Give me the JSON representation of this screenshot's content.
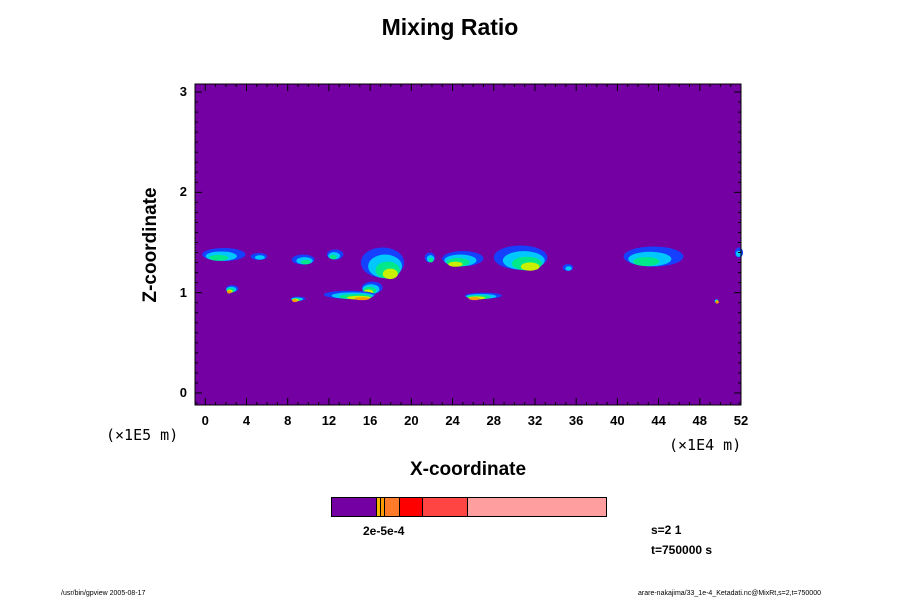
{
  "chart_data": {
    "type": "heatmap",
    "title": "Mixing Ratio",
    "xlabel": "X-coordinate",
    "ylabel": "Z-coordinate",
    "x_unit": "(×1E4 m)",
    "z_unit": "(×1E5 m)",
    "xlim": [
      -1,
      52
    ],
    "zlim": [
      -0.12,
      3.08
    ],
    "x_ticks": [
      0,
      4,
      8,
      12,
      16,
      20,
      24,
      28,
      32,
      36,
      40,
      44,
      48,
      52
    ],
    "z_ticks": [
      0,
      1,
      2,
      3
    ],
    "background_color": "#7400a4",
    "colorbar": {
      "label": "2e-5e-4",
      "segments": [
        {
          "color": "#7400a4",
          "weight": 16
        },
        {
          "color": "#f7b600",
          "weight": 1
        },
        {
          "color": "#ff9a00",
          "weight": 1
        },
        {
          "color": "#ff7b2a",
          "weight": 5
        },
        {
          "color": "#ff0000",
          "weight": 8
        },
        {
          "color": "#ff4444",
          "weight": 16
        },
        {
          "color": "#ff9e9e",
          "weight": 50
        }
      ]
    },
    "features": [
      {
        "x": 1.8,
        "z": 1.38,
        "w": 4.2,
        "h": 0.13,
        "level": 3
      },
      {
        "x": 5.2,
        "z": 1.36,
        "w": 1.6,
        "h": 0.07,
        "level": 2
      },
      {
        "x": 2.6,
        "z": 1.04,
        "w": 1.2,
        "h": 0.07,
        "level": 5
      },
      {
        "x": 9.5,
        "z": 1.33,
        "w": 2.2,
        "h": 0.1,
        "level": 3
      },
      {
        "x": 12.6,
        "z": 1.38,
        "w": 1.6,
        "h": 0.1,
        "level": 3
      },
      {
        "x": 17.2,
        "z": 1.3,
        "w": 4.2,
        "h": 0.3,
        "level": 4
      },
      {
        "x": 16.2,
        "z": 1.05,
        "w": 2.0,
        "h": 0.12,
        "level": 5
      },
      {
        "x": 14.0,
        "z": 0.98,
        "w": 5.0,
        "h": 0.08,
        "level": 5
      },
      {
        "x": 9.0,
        "z": 0.94,
        "w": 1.4,
        "h": 0.04,
        "level": 5
      },
      {
        "x": 21.8,
        "z": 1.35,
        "w": 1.0,
        "h": 0.1,
        "level": 3
      },
      {
        "x": 25.0,
        "z": 1.34,
        "w": 4.0,
        "h": 0.15,
        "level": 4
      },
      {
        "x": 30.6,
        "z": 1.35,
        "w": 5.2,
        "h": 0.24,
        "level": 4
      },
      {
        "x": 27.0,
        "z": 0.97,
        "w": 3.6,
        "h": 0.06,
        "level": 5
      },
      {
        "x": 35.2,
        "z": 1.25,
        "w": 1.0,
        "h": 0.07,
        "level": 2
      },
      {
        "x": 43.5,
        "z": 1.36,
        "w": 5.8,
        "h": 0.2,
        "level": 3
      },
      {
        "x": 49.6,
        "z": 0.92,
        "w": 0.4,
        "h": 0.03,
        "level": 5
      },
      {
        "x": 51.8,
        "z": 1.4,
        "w": 0.8,
        "h": 0.1,
        "level": 2
      }
    ]
  },
  "info": {
    "step": "s=2 1",
    "time": "t=750000 s"
  },
  "footer": {
    "left": "/usr/bin/gpview 2005-08-17",
    "right": "arare-nakajima/33_1e-4_Ketadati.nc@MixRt,s=2,t=750000"
  }
}
